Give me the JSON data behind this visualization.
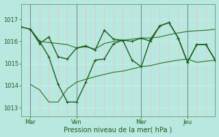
{
  "xlabel": "Pression niveau de la mer( hPa )",
  "background_color": "#b8e8e0",
  "plot_bg_color": "#b8e8e0",
  "ylim": [
    1012.6,
    1017.7
  ],
  "xlim": [
    0,
    21
  ],
  "yticks": [
    1013,
    1014,
    1015,
    1016,
    1017
  ],
  "xtick_positions": [
    1,
    6,
    13,
    18
  ],
  "xtick_labels": [
    "Mar",
    "Ven",
    "Mer",
    "Jeu"
  ],
  "grid_color_h": "#c8f0e8",
  "grid_color_v_pink": "#e8c0c0",
  "vline_color": "#888888",
  "dark_green": "#1a5c1a",
  "mid_green": "#2a7a2a",
  "series_A_x": [
    0,
    1,
    2,
    3,
    4,
    5,
    6,
    7,
    8,
    9,
    10,
    11,
    12,
    13,
    14,
    15,
    16,
    17,
    18,
    19,
    20,
    21
  ],
  "series_A_y": [
    1016.65,
    1016.55,
    1015.9,
    1016.2,
    1015.3,
    1015.2,
    1015.7,
    1015.8,
    1015.6,
    1016.5,
    1016.1,
    1016.05,
    1016.0,
    1016.15,
    1016.0,
    1016.7,
    1016.85,
    1016.15,
    1015.05,
    1015.85,
    1015.85,
    1015.15
  ],
  "series_B_x": [
    0,
    1,
    2,
    3,
    4,
    5,
    6,
    7,
    8,
    9,
    10,
    11,
    12,
    13,
    14,
    15,
    16,
    17,
    18,
    19,
    20,
    21
  ],
  "series_B_y": [
    1016.65,
    1016.55,
    1016.0,
    1015.95,
    1015.9,
    1015.85,
    1015.7,
    1015.75,
    1015.65,
    1015.9,
    1016.0,
    1016.05,
    1016.1,
    1016.15,
    1016.15,
    1016.2,
    1016.3,
    1016.38,
    1016.45,
    1016.48,
    1016.5,
    1016.55
  ],
  "series_C_x": [
    1,
    2,
    3,
    4,
    5,
    6,
    7,
    8,
    9,
    10,
    11,
    12,
    13,
    14,
    15,
    16,
    17,
    18,
    19,
    20,
    21
  ],
  "series_C_y": [
    1014.05,
    1013.8,
    1013.25,
    1013.25,
    1013.85,
    1014.15,
    1014.28,
    1014.4,
    1014.5,
    1014.6,
    1014.65,
    1014.75,
    1014.85,
    1014.9,
    1015.0,
    1015.08,
    1015.15,
    1015.2,
    1015.05,
    1015.1,
    1015.15
  ],
  "series_D_x": [
    1,
    2,
    3,
    4,
    5,
    6,
    7,
    8,
    9,
    10,
    11,
    12,
    13,
    14,
    15,
    16,
    17,
    18,
    19,
    20,
    21
  ],
  "series_D_y": [
    1016.55,
    1016.0,
    1015.3,
    1014.05,
    1013.25,
    1013.25,
    1014.15,
    1015.15,
    1015.2,
    1015.9,
    1016.05,
    1015.15,
    1014.85,
    1016.1,
    1016.7,
    1016.85,
    1016.15,
    1015.05,
    1015.85,
    1015.85,
    1015.15
  ]
}
